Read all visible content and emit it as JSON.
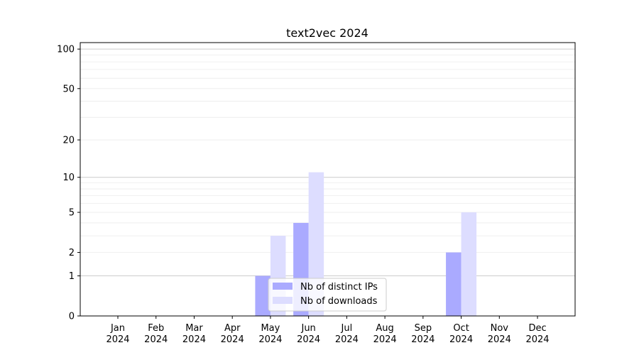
{
  "chart_data": {
    "type": "bar",
    "title": "text2vec 2024",
    "xlabel": "",
    "ylabel": "",
    "y_scale": "log(1+y)",
    "ylim": [
      0,
      112
    ],
    "y_ticks": [
      0,
      1,
      2,
      5,
      10,
      20,
      50,
      100
    ],
    "grid": true,
    "legend_position": "lower-center",
    "categories": [
      "Jan\n2024",
      "Feb\n2024",
      "Mar\n2024",
      "Apr\n2024",
      "May\n2024",
      "Jun\n2024",
      "Jul\n2024",
      "Aug\n2024",
      "Sep\n2024",
      "Oct\n2024",
      "Nov\n2024",
      "Dec\n2024"
    ],
    "series": [
      {
        "name": "Nb of distinct IPs",
        "color": "#aaaaff",
        "values": [
          0,
          0,
          0,
          0,
          1,
          4,
          0,
          0,
          0,
          2,
          0,
          0
        ]
      },
      {
        "name": "Nb of downloads",
        "color": "#ddddff",
        "values": [
          0,
          0,
          0,
          0,
          3,
          11,
          0,
          0,
          0,
          5,
          0,
          0
        ]
      }
    ]
  }
}
